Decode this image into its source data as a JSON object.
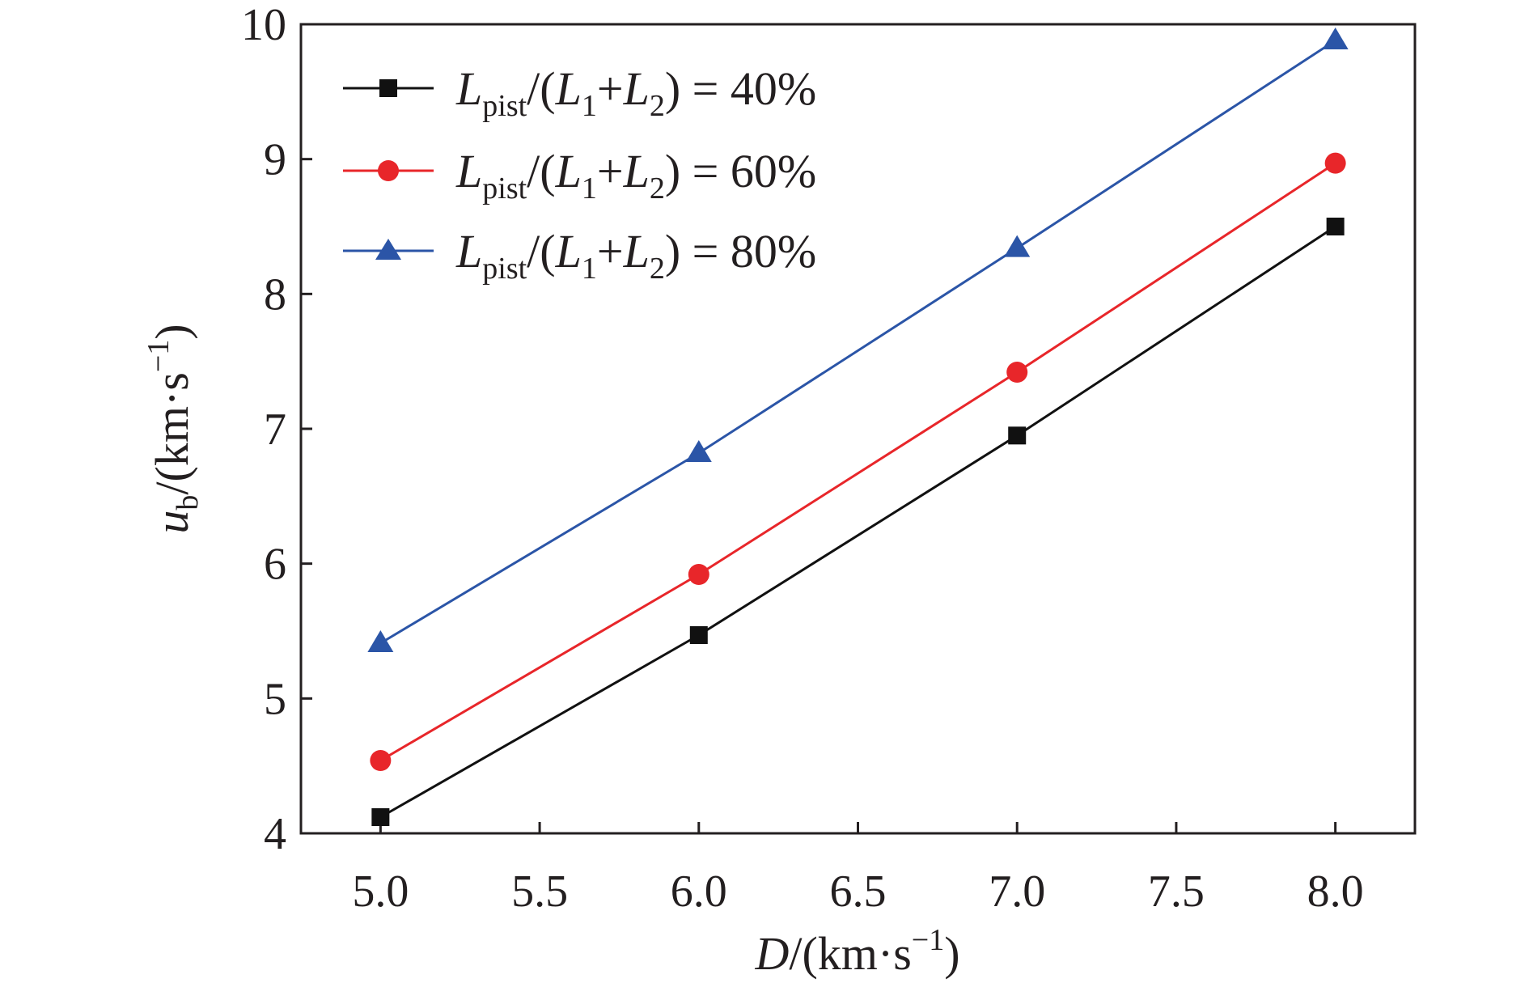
{
  "chart_data": {
    "type": "line",
    "x": [
      5.0,
      6.0,
      7.0,
      8.0
    ],
    "xlim": [
      4.75,
      8.25
    ],
    "ylim": [
      4,
      10
    ],
    "x_ticks": [
      "5.0",
      "5.5",
      "6.0",
      "6.5",
      "7.0",
      "7.5",
      "8.0"
    ],
    "y_ticks": [
      "4",
      "5",
      "6",
      "7",
      "8",
      "9",
      "10"
    ],
    "xlabel": "D/(km·s−1)",
    "ylabel": "ub/(km·s−1)",
    "xlabel_parts": {
      "var": "D",
      "unit_open": "/(km·s",
      "exp": "−1",
      "close": ")"
    },
    "ylabel_parts": {
      "var": "u",
      "sub": "b",
      "unit_open": "/(km·s",
      "exp": "−1",
      "close": ")"
    },
    "legend_position": "top-left",
    "grid": false,
    "series": [
      {
        "name": "Lpist/(L1+L2) = 40%",
        "name_parts": {
          "L": "L",
          "pist": "pist",
          "mid1": "/(",
          "L1": "L",
          "s1": "1",
          "plus": "+",
          "L2": "L",
          "s2": "2",
          "end": ") = ",
          "pct": "40%"
        },
        "color": "#111111",
        "marker": "square",
        "values": [
          4.12,
          5.47,
          6.95,
          8.5
        ]
      },
      {
        "name": "Lpist/(L1+L2) = 60%",
        "name_parts": {
          "L": "L",
          "pist": "pist",
          "mid1": "/(",
          "L1": "L",
          "s1": "1",
          "plus": "+",
          "L2": "L",
          "s2": "2",
          "end": ") = ",
          "pct": "60%"
        },
        "color": "#e8262a",
        "marker": "circle",
        "values": [
          4.54,
          5.92,
          7.42,
          8.97
        ]
      },
      {
        "name": "Lpist/(L1+L2) = 80%",
        "name_parts": {
          "L": "L",
          "pist": "pist",
          "mid1": "/(",
          "L1": "L",
          "s1": "1",
          "plus": "+",
          "L2": "L",
          "s2": "2",
          "end": ") = ",
          "pct": "80%"
        },
        "color": "#2b55a7",
        "marker": "triangle",
        "values": [
          5.41,
          6.82,
          8.34,
          9.88
        ]
      }
    ]
  }
}
